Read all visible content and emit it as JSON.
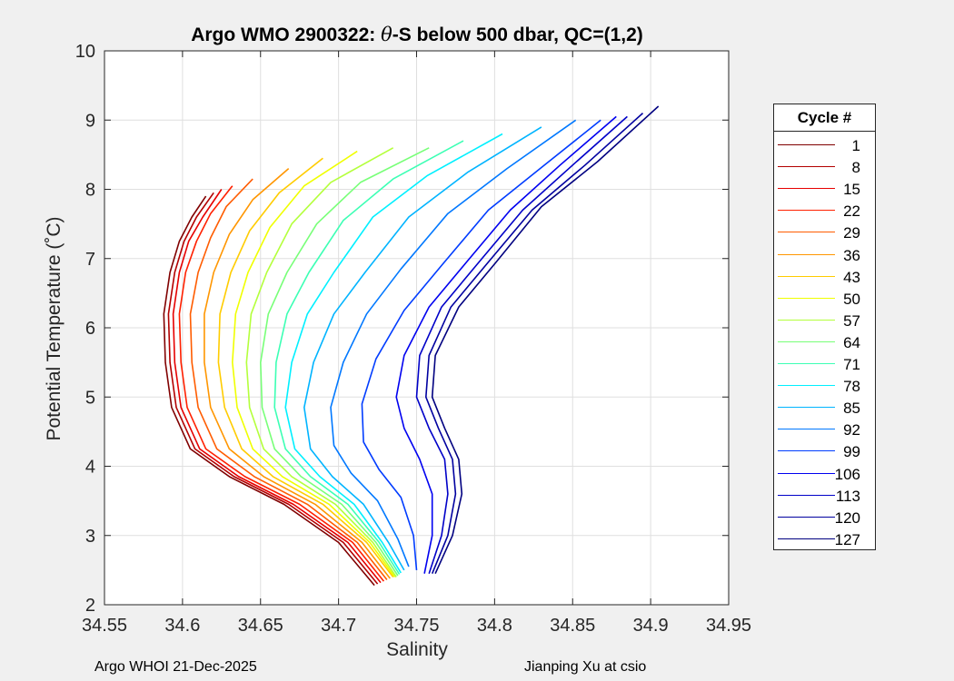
{
  "footer": {
    "left": "Argo WHOI 21-Dec-2025",
    "right": "Jianping Xu at csio"
  },
  "chart_data": {
    "type": "line",
    "title": "Argo WMO 2900322: θ-S below 500 dbar,  QC=(1,2)",
    "title_parts": {
      "before": "Argo WMO 2900322: ",
      "symbol": "θ",
      "after": "-S below 500 dbar,  QC=(1,2)"
    },
    "xlabel": "Salinity",
    "ylabel": "Potential Temperature (˚C)",
    "xlim": [
      34.55,
      34.95
    ],
    "ylim": [
      2,
      10
    ],
    "xticks": [
      "34.55",
      "34.6",
      "34.65",
      "34.7",
      "34.75",
      "34.8",
      "34.85",
      "34.9",
      "34.95"
    ],
    "yticks": [
      "2",
      "3",
      "4",
      "5",
      "6",
      "7",
      "8",
      "9",
      "10"
    ],
    "grid": true,
    "colormap": "jet",
    "legend": {
      "title": "Cycle #",
      "placement": "outside-right",
      "entries": [
        {
          "label": "1",
          "color": "#800000"
        },
        {
          "label": "8",
          "color": "#b30000"
        },
        {
          "label": "15",
          "color": "#e60000"
        },
        {
          "label": "22",
          "color": "#ff2000"
        },
        {
          "label": "29",
          "color": "#ff5c00"
        },
        {
          "label": "36",
          "color": "#ff9600"
        },
        {
          "label": "43",
          "color": "#ffcc00"
        },
        {
          "label": "50",
          "color": "#f0ff00"
        },
        {
          "label": "57",
          "color": "#b4ff3c"
        },
        {
          "label": "64",
          "color": "#78ff78"
        },
        {
          "label": "71",
          "color": "#3cffb4"
        },
        {
          "label": "78",
          "color": "#00f0ff"
        },
        {
          "label": "85",
          "color": "#00b4ff"
        },
        {
          "label": "92",
          "color": "#0078ff"
        },
        {
          "label": "99",
          "color": "#003cff"
        },
        {
          "label": "106",
          "color": "#0000f0"
        },
        {
          "label": "113",
          "color": "#0000c8"
        },
        {
          "label": "120",
          "color": "#0000a0"
        },
        {
          "label": "127",
          "color": "#000080"
        }
      ]
    },
    "series": [
      {
        "color": "#800000",
        "x": [
          34.723,
          34.7,
          34.665,
          34.63,
          34.605,
          34.593,
          34.589,
          34.588,
          34.592,
          34.598,
          34.606,
          34.615
        ],
        "y": [
          2.28,
          2.9,
          3.45,
          3.85,
          4.25,
          4.85,
          5.5,
          6.2,
          6.8,
          7.25,
          7.6,
          7.9
        ]
      },
      {
        "color": "#b30000",
        "x": [
          34.725,
          34.703,
          34.668,
          34.633,
          34.608,
          34.596,
          34.592,
          34.591,
          34.595,
          34.601,
          34.609,
          34.62
        ],
        "y": [
          2.3,
          2.9,
          3.45,
          3.85,
          4.25,
          4.85,
          5.5,
          6.2,
          6.8,
          7.25,
          7.6,
          7.95
        ]
      },
      {
        "color": "#e60000",
        "x": [
          34.727,
          34.706,
          34.671,
          34.636,
          34.611,
          34.599,
          34.595,
          34.594,
          34.598,
          34.604,
          34.613,
          34.625
        ],
        "y": [
          2.32,
          2.9,
          3.45,
          3.85,
          4.25,
          4.85,
          5.5,
          6.2,
          6.8,
          7.25,
          7.6,
          8.0
        ]
      },
      {
        "color": "#ff2000",
        "x": [
          34.729,
          34.709,
          34.675,
          34.64,
          34.615,
          34.603,
          34.599,
          34.598,
          34.602,
          34.609,
          34.618,
          34.632
        ],
        "y": [
          2.34,
          2.9,
          3.45,
          3.85,
          4.25,
          4.85,
          5.5,
          6.2,
          6.8,
          7.25,
          7.65,
          8.05
        ]
      },
      {
        "color": "#ff5c00",
        "x": [
          34.731,
          34.712,
          34.68,
          34.646,
          34.622,
          34.61,
          34.606,
          34.605,
          34.61,
          34.618,
          34.628,
          34.645
        ],
        "y": [
          2.36,
          2.9,
          3.45,
          3.85,
          4.25,
          4.85,
          5.5,
          6.2,
          6.8,
          7.3,
          7.75,
          8.15
        ]
      },
      {
        "color": "#ff9600",
        "x": [
          34.733,
          34.715,
          34.685,
          34.652,
          34.63,
          34.618,
          34.614,
          34.614,
          34.62,
          34.63,
          34.645,
          34.668
        ],
        "y": [
          2.38,
          2.9,
          3.45,
          3.85,
          4.25,
          4.85,
          5.5,
          6.2,
          6.8,
          7.35,
          7.85,
          8.3
        ]
      },
      {
        "color": "#ffcc00",
        "x": [
          34.735,
          34.718,
          34.69,
          34.658,
          34.638,
          34.627,
          34.623,
          34.624,
          34.631,
          34.643,
          34.662,
          34.69
        ],
        "y": [
          2.4,
          2.9,
          3.45,
          3.85,
          4.25,
          4.85,
          5.5,
          6.2,
          6.8,
          7.4,
          7.95,
          8.45
        ]
      },
      {
        "color": "#f0ff00",
        "x": [
          34.736,
          34.72,
          34.694,
          34.664,
          34.645,
          34.635,
          34.632,
          34.634,
          34.642,
          34.656,
          34.678,
          34.712
        ],
        "y": [
          2.4,
          2.9,
          3.45,
          3.85,
          4.25,
          4.85,
          5.5,
          6.2,
          6.8,
          7.45,
          8.05,
          8.55
        ]
      },
      {
        "color": "#b4ff3c",
        "x": [
          34.737,
          34.722,
          34.698,
          34.67,
          34.652,
          34.643,
          34.641,
          34.644,
          34.654,
          34.67,
          34.695,
          34.735
        ],
        "y": [
          2.4,
          2.9,
          3.45,
          3.85,
          4.25,
          4.85,
          5.5,
          6.2,
          6.8,
          7.5,
          8.1,
          8.6
        ]
      },
      {
        "color": "#78ff78",
        "x": [
          34.738,
          34.724,
          34.702,
          34.676,
          34.659,
          34.651,
          34.65,
          34.655,
          34.667,
          34.686,
          34.714,
          34.758
        ],
        "y": [
          2.42,
          2.9,
          3.45,
          3.85,
          4.25,
          4.85,
          5.5,
          6.2,
          6.8,
          7.5,
          8.1,
          8.6
        ]
      },
      {
        "color": "#3cffb4",
        "x": [
          34.739,
          34.726,
          34.706,
          34.682,
          34.666,
          34.659,
          34.66,
          34.667,
          34.681,
          34.703,
          34.735,
          34.78
        ],
        "y": [
          2.44,
          2.9,
          3.45,
          3.85,
          4.25,
          4.85,
          5.5,
          6.2,
          6.8,
          7.55,
          8.15,
          8.7
        ]
      },
      {
        "color": "#00f0ff",
        "x": [
          34.74,
          34.728,
          34.71,
          34.688,
          34.672,
          34.666,
          34.67,
          34.68,
          34.697,
          34.722,
          34.757,
          34.805
        ],
        "y": [
          2.46,
          2.9,
          3.45,
          3.85,
          4.25,
          4.85,
          5.5,
          6.2,
          6.8,
          7.6,
          8.2,
          8.8
        ]
      },
      {
        "color": "#00b4ff",
        "x": [
          34.742,
          34.732,
          34.716,
          34.696,
          34.682,
          34.678,
          34.684,
          34.697,
          34.717,
          34.745,
          34.783,
          34.83
        ],
        "y": [
          2.5,
          2.9,
          3.45,
          3.85,
          4.25,
          4.85,
          5.5,
          6.2,
          6.8,
          7.6,
          8.25,
          8.9
        ]
      },
      {
        "color": "#0078ff",
        "x": [
          34.745,
          34.738,
          34.725,
          34.708,
          34.697,
          34.695,
          34.703,
          34.718,
          34.74,
          34.77,
          34.808,
          34.852
        ],
        "y": [
          2.55,
          2.95,
          3.5,
          3.9,
          4.3,
          4.85,
          5.5,
          6.2,
          6.85,
          7.65,
          8.3,
          9.0
        ]
      },
      {
        "color": "#003cff",
        "x": [
          34.75,
          34.748,
          34.74,
          34.726,
          34.716,
          34.715,
          34.724,
          34.742,
          34.766,
          34.796,
          34.832,
          34.868
        ],
        "y": [
          2.5,
          3.0,
          3.55,
          3.95,
          4.35,
          4.9,
          5.55,
          6.25,
          6.9,
          7.7,
          8.35,
          9.0
        ]
      },
      {
        "color": "#0000f0",
        "x": [
          34.755,
          34.76,
          34.76,
          34.752,
          34.742,
          34.737,
          34.742,
          34.758,
          34.782,
          34.81,
          34.842,
          34.878
        ],
        "y": [
          2.45,
          3.0,
          3.6,
          4.1,
          4.55,
          5.0,
          5.6,
          6.3,
          6.95,
          7.7,
          8.35,
          9.05
        ]
      },
      {
        "color": "#0000c8",
        "x": [
          34.758,
          34.766,
          34.77,
          34.768,
          34.758,
          34.75,
          34.752,
          34.766,
          34.79,
          34.818,
          34.85,
          34.885
        ],
        "y": [
          2.45,
          3.0,
          3.6,
          4.1,
          4.55,
          5.0,
          5.6,
          6.3,
          6.95,
          7.7,
          8.35,
          9.05
        ]
      },
      {
        "color": "#0000a0",
        "x": [
          34.76,
          34.77,
          34.775,
          34.773,
          34.764,
          34.756,
          34.758,
          34.772,
          34.796,
          34.824,
          34.858,
          34.895
        ],
        "y": [
          2.45,
          3.0,
          3.6,
          4.1,
          4.55,
          5.0,
          5.6,
          6.3,
          6.95,
          7.7,
          8.35,
          9.1
        ]
      },
      {
        "color": "#000080",
        "x": [
          34.762,
          34.773,
          34.779,
          34.777,
          34.768,
          34.76,
          34.762,
          34.777,
          34.801,
          34.83,
          34.866,
          34.905
        ],
        "y": [
          2.45,
          3.0,
          3.6,
          4.1,
          4.55,
          5.0,
          5.6,
          6.3,
          6.95,
          7.75,
          8.4,
          9.2
        ]
      }
    ]
  }
}
